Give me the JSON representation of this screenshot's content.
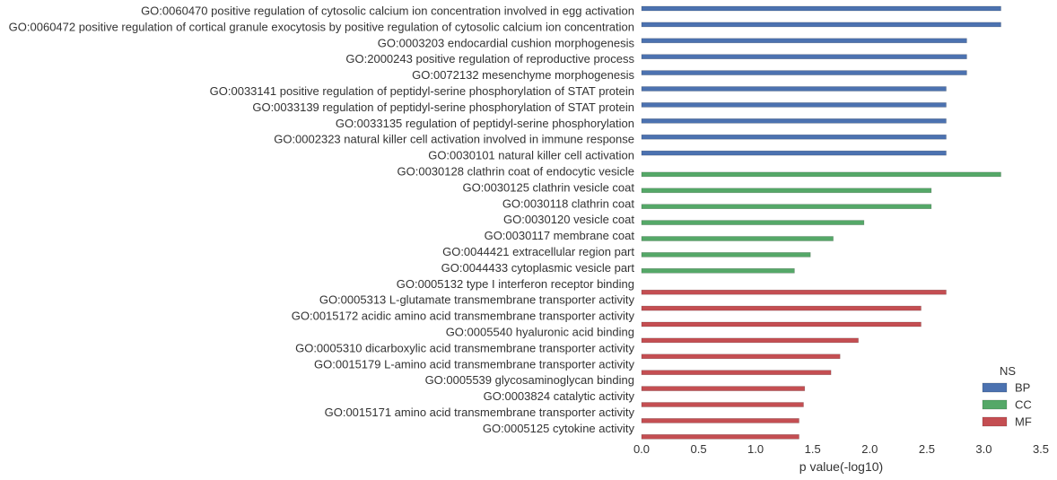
{
  "chart_data": {
    "type": "bar",
    "orientation": "horizontal",
    "xlabel": "p value(-log10)",
    "xlim": [
      0,
      3.5
    ],
    "xticks": [
      "0.0",
      "0.5",
      "1.0",
      "1.5",
      "2.0",
      "2.5",
      "3.0",
      "3.5"
    ],
    "grid": false,
    "legend": {
      "title": "NS",
      "position": "lower-right",
      "entries": [
        {
          "name": "BP",
          "color": "#4c72b0"
        },
        {
          "name": "CC",
          "color": "#55a868"
        },
        {
          "name": "MF",
          "color": "#c44e52"
        }
      ]
    },
    "categories": [
      "GO:0060470 positive regulation of cytosolic calcium ion concentration involved in egg activation",
      "GO:0060472 positive regulation of cortical granule exocytosis by positive regulation of cytosolic calcium ion concentration",
      "GO:0003203 endocardial cushion morphogenesis",
      "GO:2000243 positive regulation of reproductive process",
      "GO:0072132 mesenchyme morphogenesis",
      "GO:0033141 positive regulation of peptidyl-serine phosphorylation of STAT protein",
      "GO:0033139 regulation of peptidyl-serine phosphorylation of STAT protein",
      "GO:0033135 regulation of peptidyl-serine phosphorylation",
      "GO:0002323 natural killer cell activation involved in immune response",
      "GO:0030101 natural killer cell activation",
      "GO:0030128 clathrin coat of endocytic vesicle",
      "GO:0030125 clathrin vesicle coat",
      "GO:0030118 clathrin coat",
      "GO:0030120 vesicle coat",
      "GO:0030117 membrane coat",
      "GO:0044421 extracellular region part",
      "GO:0044433 cytoplasmic vesicle part",
      "GO:0005132 type I interferon receptor binding",
      "GO:0005313 L-glutamate transmembrane transporter activity",
      "GO:0015172 acidic amino acid transmembrane transporter activity",
      "GO:0005540 hyaluronic acid binding",
      "GO:0005310 dicarboxylic acid transmembrane transporter activity",
      "GO:0015179 L-amino acid transmembrane transporter activity",
      "GO:0005539 glycosaminoglycan binding",
      "GO:0003824 catalytic activity",
      "GO:0015171 amino acid transmembrane transporter activity",
      "GO:0005125 cytokine activity"
    ],
    "series": [
      {
        "name": "BP",
        "color": "#4c72b0",
        "values": [
          3.15,
          3.15,
          2.85,
          2.85,
          2.85,
          2.67,
          2.67,
          2.67,
          2.67,
          2.67,
          null,
          null,
          null,
          null,
          null,
          null,
          null,
          null,
          null,
          null,
          null,
          null,
          null,
          null,
          null,
          null,
          null
        ]
      },
      {
        "name": "CC",
        "color": "#55a868",
        "values": [
          null,
          null,
          null,
          null,
          null,
          null,
          null,
          null,
          null,
          null,
          3.15,
          2.54,
          2.54,
          1.95,
          1.68,
          1.48,
          1.34,
          null,
          null,
          null,
          null,
          null,
          null,
          null,
          null,
          null,
          null
        ]
      },
      {
        "name": "MF",
        "color": "#c44e52",
        "values": [
          null,
          null,
          null,
          null,
          null,
          null,
          null,
          null,
          null,
          null,
          null,
          null,
          null,
          null,
          null,
          null,
          null,
          2.67,
          2.45,
          2.45,
          1.9,
          1.74,
          1.66,
          1.43,
          1.42,
          1.38,
          1.38
        ]
      }
    ]
  }
}
